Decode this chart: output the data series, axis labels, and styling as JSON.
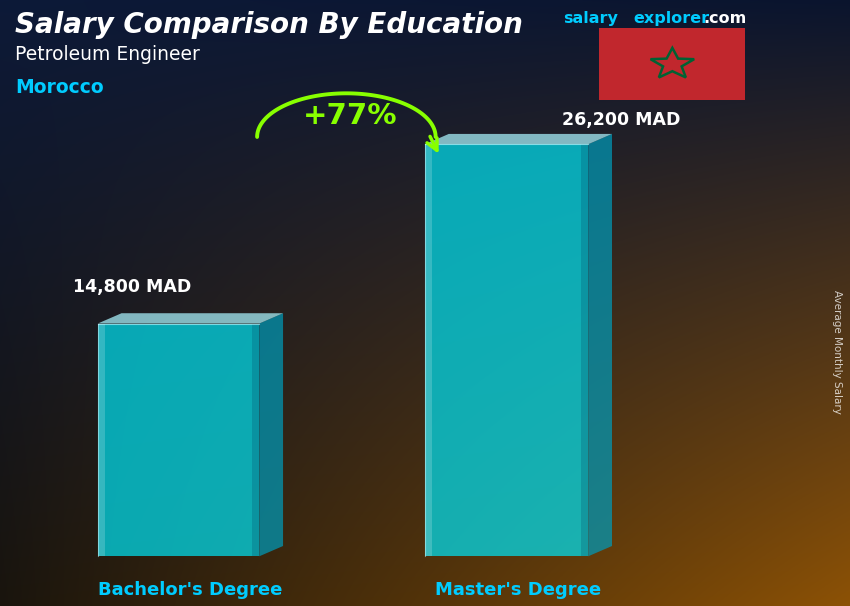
{
  "title_main": "Salary Comparison By Education",
  "subtitle1": "Petroleum Engineer",
  "subtitle2": "Morocco",
  "subtitle2_color": "#00ccff",
  "categories": [
    "Bachelor's Degree",
    "Master's Degree"
  ],
  "values": [
    14800,
    26200
  ],
  "labels": [
    "14,800 MAD",
    "26,200 MAD"
  ],
  "pct_change": "+77%",
  "bar_face_color": "#00e0f0",
  "bar_top_color": "#aaf5ff",
  "bar_side_color": "#009ab8",
  "bar_alpha": 0.72,
  "pct_color": "#88ff00",
  "arrow_color": "#88ff00",
  "label_color": "#ffffff",
  "xlabel_color": "#00ccff",
  "flag_red": "#c1272d",
  "flag_green": "#006233",
  "ylabel_text": "Average Monthly Salary",
  "website_salary_color": "#00ccff",
  "website_explorer_color": "#00ccff",
  "website_com_color": "#ffffff"
}
